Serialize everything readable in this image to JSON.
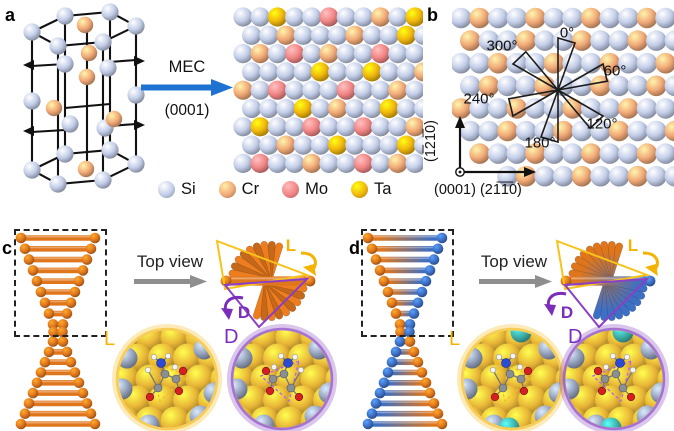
{
  "figure": {
    "panels": {
      "a": {
        "label": "a",
        "mec_label": "MEC",
        "plane_label": "(0001)",
        "legend": [
          {
            "element": "Si",
            "color": "#c2cde8"
          },
          {
            "element": "Cr",
            "color": "#f1a977"
          },
          {
            "element": "Mo",
            "color": "#f18585"
          },
          {
            "element": "Ta",
            "color": "#f0b60d"
          }
        ],
        "alloy_lattice_rows": [
          "SSTSSMSSCST",
          "SSCSSSCSSTS",
          "SCSMSCSSMSS",
          "SSSSTSSTSSC",
          "CSMSSSMSSCS",
          "SSSTSCSSTSS",
          "STSSMSSMSSC",
          "SSCSSTSSSTS",
          "SMSSCSSMSCS"
        ]
      },
      "b": {
        "label": "b",
        "angle_labels": [
          "0°",
          "60°",
          "120°",
          "180°",
          "240°",
          "300°"
        ],
        "axis_vertical_label": "(1̅21̅0)",
        "axis_horizontal_label": "(0001) (21̅1̅0)",
        "lattice_rows": [
          "SCSSCSSCSSCS",
          "CSSCSSCSSCSS",
          "SSCSSCSSCSSC",
          "SCSSCSSCSSCS",
          "CSSCSSCSSCSS",
          "SSCSSCSSCSSC",
          "SCSSCSSCSSCS",
          "CSSCSSCSSCSS"
        ]
      },
      "c": {
        "label": "c",
        "top_view_label": "Top view",
        "rotation_l_label": "L",
        "rotation_d_label": "D",
        "inset_l_label": "L",
        "inset_d_label": "D",
        "helix_style": "orange"
      },
      "d": {
        "label": "d",
        "top_view_label": "Top view",
        "rotation_l_label": "L",
        "rotation_d_label": "D",
        "inset_l_label": "L",
        "inset_d_label": "D",
        "helix_style": "orange-blue"
      }
    },
    "colors": {
      "si": "#c2cde8",
      "cr": "#f1a977",
      "mo": "#f18585",
      "ta": "#f0b60d",
      "mec_arrow_blue": "#1e73d2",
      "helix_orange": "#e0761c",
      "helix_blue": "#3d6fc4",
      "chirality_l_yellow": "#f5b301",
      "chirality_d_purple": "#7a2dbb",
      "gold_surface": "#d7a021",
      "gold_sphere": "#e9b637",
      "gray_sphere": "#95a2bd",
      "teal_sphere": "#3fb3ad",
      "gray_arrow": "#8e8e8e",
      "wireframe_black": "#111111"
    }
  }
}
